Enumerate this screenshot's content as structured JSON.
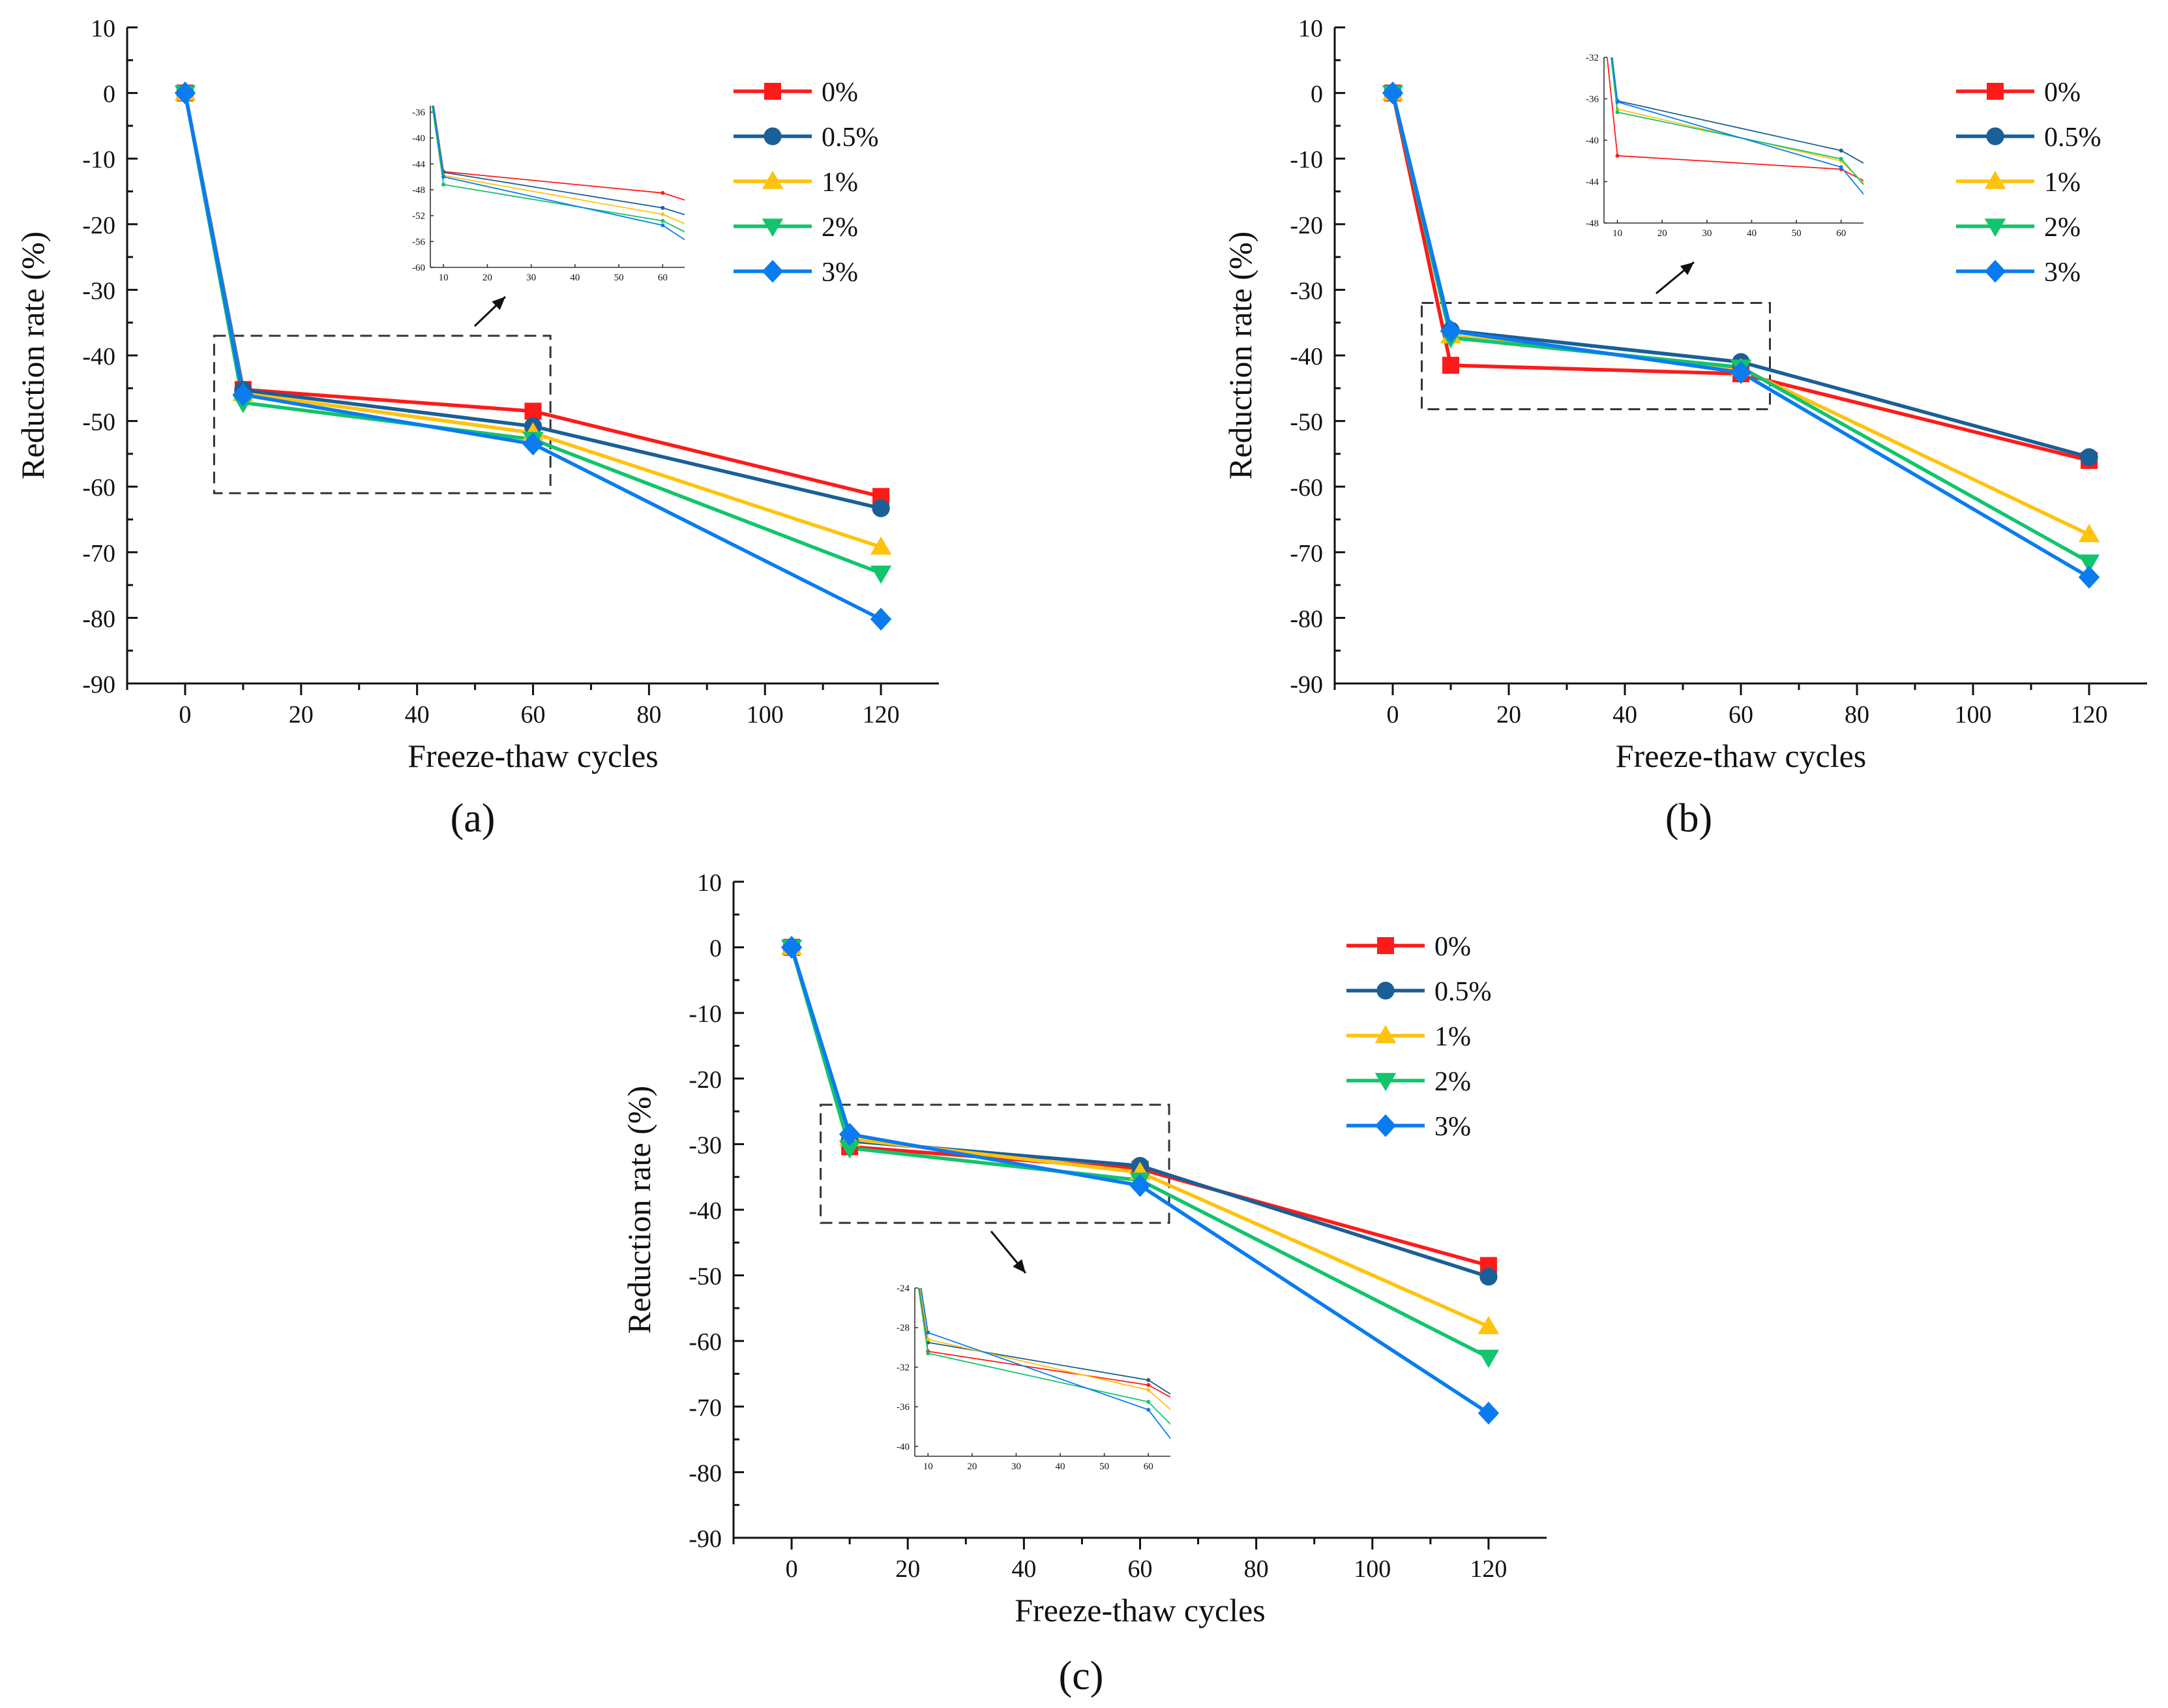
{
  "colors": {
    "0%": "#ff1a1a",
    "0.5%": "#1a5f96",
    "1%": "#ffc20e",
    "2%": "#12c46c",
    "3%": "#0a7cf0"
  },
  "chart_data": [
    {
      "type": "line",
      "panel": "a",
      "caption": "(a)",
      "xlabel": "Freeze-thaw cycles",
      "ylabel": "Reduction rate (%)",
      "x": [
        0,
        10,
        60,
        120
      ],
      "xlim": [
        -10,
        130
      ],
      "ylim": [
        -90,
        10
      ],
      "xticks": [
        0,
        20,
        40,
        60,
        80,
        100,
        120
      ],
      "yticks": [
        10,
        0,
        -10,
        -20,
        -30,
        -40,
        -50,
        -60,
        -70,
        -80,
        -90
      ],
      "series": [
        {
          "name": "0%",
          "marker": "square",
          "values": [
            0,
            -45.2,
            -48.5,
            -61.5
          ]
        },
        {
          "name": "0.5%",
          "marker": "circle",
          "values": [
            0,
            -45.3,
            -50.8,
            -63.3
          ]
        },
        {
          "name": "1%",
          "marker": "triangle-up",
          "values": [
            0,
            -45.8,
            -51.8,
            -69.2
          ]
        },
        {
          "name": "2%",
          "marker": "triangle-down",
          "values": [
            0,
            -47.2,
            -52.8,
            -73.2
          ]
        },
        {
          "name": "3%",
          "marker": "diamond",
          "values": [
            0,
            -46.0,
            -53.5,
            -80.2
          ]
        }
      ],
      "zoom_box": {
        "x": [
          5,
          63
        ],
        "y": [
          -37,
          -61
        ]
      },
      "inset": {
        "xlim": [
          7,
          65
        ],
        "ylim": [
          -60,
          -35
        ],
        "xticks": [
          10,
          20,
          30,
          40,
          50,
          60
        ],
        "yticks": [
          -36,
          -40,
          -44,
          -48,
          -52,
          -56,
          -60
        ]
      }
    },
    {
      "type": "line",
      "panel": "b",
      "caption": "(b)",
      "xlabel": "Freeze-thaw cycles",
      "ylabel": "Reduction rate (%)",
      "x": [
        0,
        10,
        60,
        120
      ],
      "xlim": [
        -10,
        130
      ],
      "ylim": [
        -90,
        10
      ],
      "xticks": [
        0,
        20,
        40,
        60,
        80,
        100,
        120
      ],
      "yticks": [
        10,
        0,
        -10,
        -20,
        -30,
        -40,
        -50,
        -60,
        -70,
        -80,
        -90
      ],
      "series": [
        {
          "name": "0%",
          "marker": "square",
          "values": [
            0,
            -41.5,
            -42.8,
            -56.0
          ]
        },
        {
          "name": "0.5%",
          "marker": "circle",
          "values": [
            0,
            -36.2,
            -41.0,
            -55.5
          ]
        },
        {
          "name": "1%",
          "marker": "triangle-up",
          "values": [
            0,
            -37.0,
            -42.0,
            -67.3
          ]
        },
        {
          "name": "2%",
          "marker": "triangle-down",
          "values": [
            0,
            -37.3,
            -41.8,
            -71.5
          ]
        },
        {
          "name": "3%",
          "marker": "diamond",
          "values": [
            0,
            -36.3,
            -42.6,
            -73.8
          ]
        }
      ],
      "zoom_box": {
        "x": [
          5,
          65
        ],
        "y": [
          -32,
          -48.2
        ]
      },
      "inset": {
        "xlim": [
          7,
          65
        ],
        "ylim": [
          -48,
          -32
        ],
        "xticks": [
          10,
          20,
          30,
          40,
          50,
          60
        ],
        "yticks": [
          -32,
          -36,
          -40,
          -44,
          -48
        ]
      }
    },
    {
      "type": "line",
      "panel": "c",
      "caption": "(c)",
      "xlabel": "Freeze-thaw cycles",
      "ylabel": "Reduction rate (%)",
      "x": [
        0,
        10,
        60,
        120
      ],
      "xlim": [
        -10,
        130
      ],
      "ylim": [
        -90,
        10
      ],
      "xticks": [
        0,
        20,
        40,
        60,
        80,
        100,
        120
      ],
      "yticks": [
        10,
        0,
        -10,
        -20,
        -30,
        -40,
        -50,
        -60,
        -70,
        -80,
        -90
      ],
      "series": [
        {
          "name": "0%",
          "marker": "square",
          "values": [
            0,
            -30.4,
            -33.8,
            -48.5
          ]
        },
        {
          "name": "0.5%",
          "marker": "circle",
          "values": [
            0,
            -29.5,
            -33.3,
            -50.2
          ]
        },
        {
          "name": "1%",
          "marker": "triangle-up",
          "values": [
            0,
            -29.2,
            -34.3,
            -57.8
          ]
        },
        {
          "name": "2%",
          "marker": "triangle-down",
          "values": [
            0,
            -30.6,
            -35.5,
            -62.5
          ]
        },
        {
          "name": "3%",
          "marker": "diamond",
          "values": [
            0,
            -28.5,
            -36.3,
            -71.0
          ]
        }
      ],
      "zoom_box": {
        "x": [
          5,
          65
        ],
        "y": [
          -24,
          -42
        ]
      },
      "inset": {
        "xlim": [
          7,
          65
        ],
        "ylim": [
          -41,
          -24
        ],
        "xticks": [
          10,
          20,
          30,
          40,
          50,
          60
        ],
        "yticks": [
          -24,
          -28,
          -32,
          -36,
          -40
        ]
      }
    }
  ]
}
